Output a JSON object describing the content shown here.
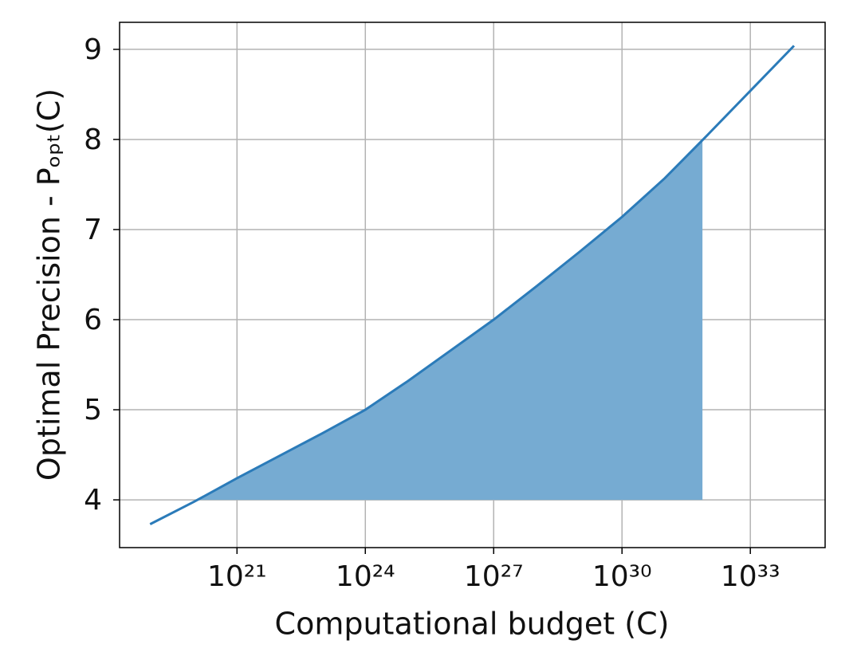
{
  "chart_data": {
    "type": "line",
    "xlabel": "Computational budget (C)",
    "ylabel": "Optimal Precision - Pₒₚₜ(C)",
    "xscale": "log",
    "x": [
      9.3e+18,
      1e+20,
      1e+21,
      1e+22,
      1e+23,
      1e+24,
      1e+25,
      1e+26,
      1e+27,
      1e+28,
      1e+29,
      1e+30,
      1e+31,
      1e+32,
      1e+33,
      1.05e+34
    ],
    "series": [
      {
        "color": "#2b7bb9",
        "values": [
          3.73,
          3.98,
          4.24,
          4.49,
          4.74,
          5.0,
          5.32,
          5.66,
          6.0,
          6.37,
          6.75,
          7.14,
          7.57,
          8.05,
          8.54,
          9.04
        ]
      }
    ],
    "fill": {
      "from": 1.2e+20,
      "to": 7.6e+31,
      "baseline": 4,
      "color": "#76abd2"
    },
    "xlim": [
      1.8e+18,
      5.6e+34
    ],
    "ylim": [
      3.47,
      9.3
    ],
    "xticks": [
      {
        "value": 1e+21,
        "label": "10²¹"
      },
      {
        "value": 1e+24,
        "label": "10²⁴"
      },
      {
        "value": 1e+27,
        "label": "10²⁷"
      },
      {
        "value": 1e+30,
        "label": "10³⁰"
      },
      {
        "value": 1e+33,
        "label": "10³³"
      }
    ],
    "yticks": [
      4,
      5,
      6,
      7,
      8,
      9
    ],
    "grid": true
  }
}
